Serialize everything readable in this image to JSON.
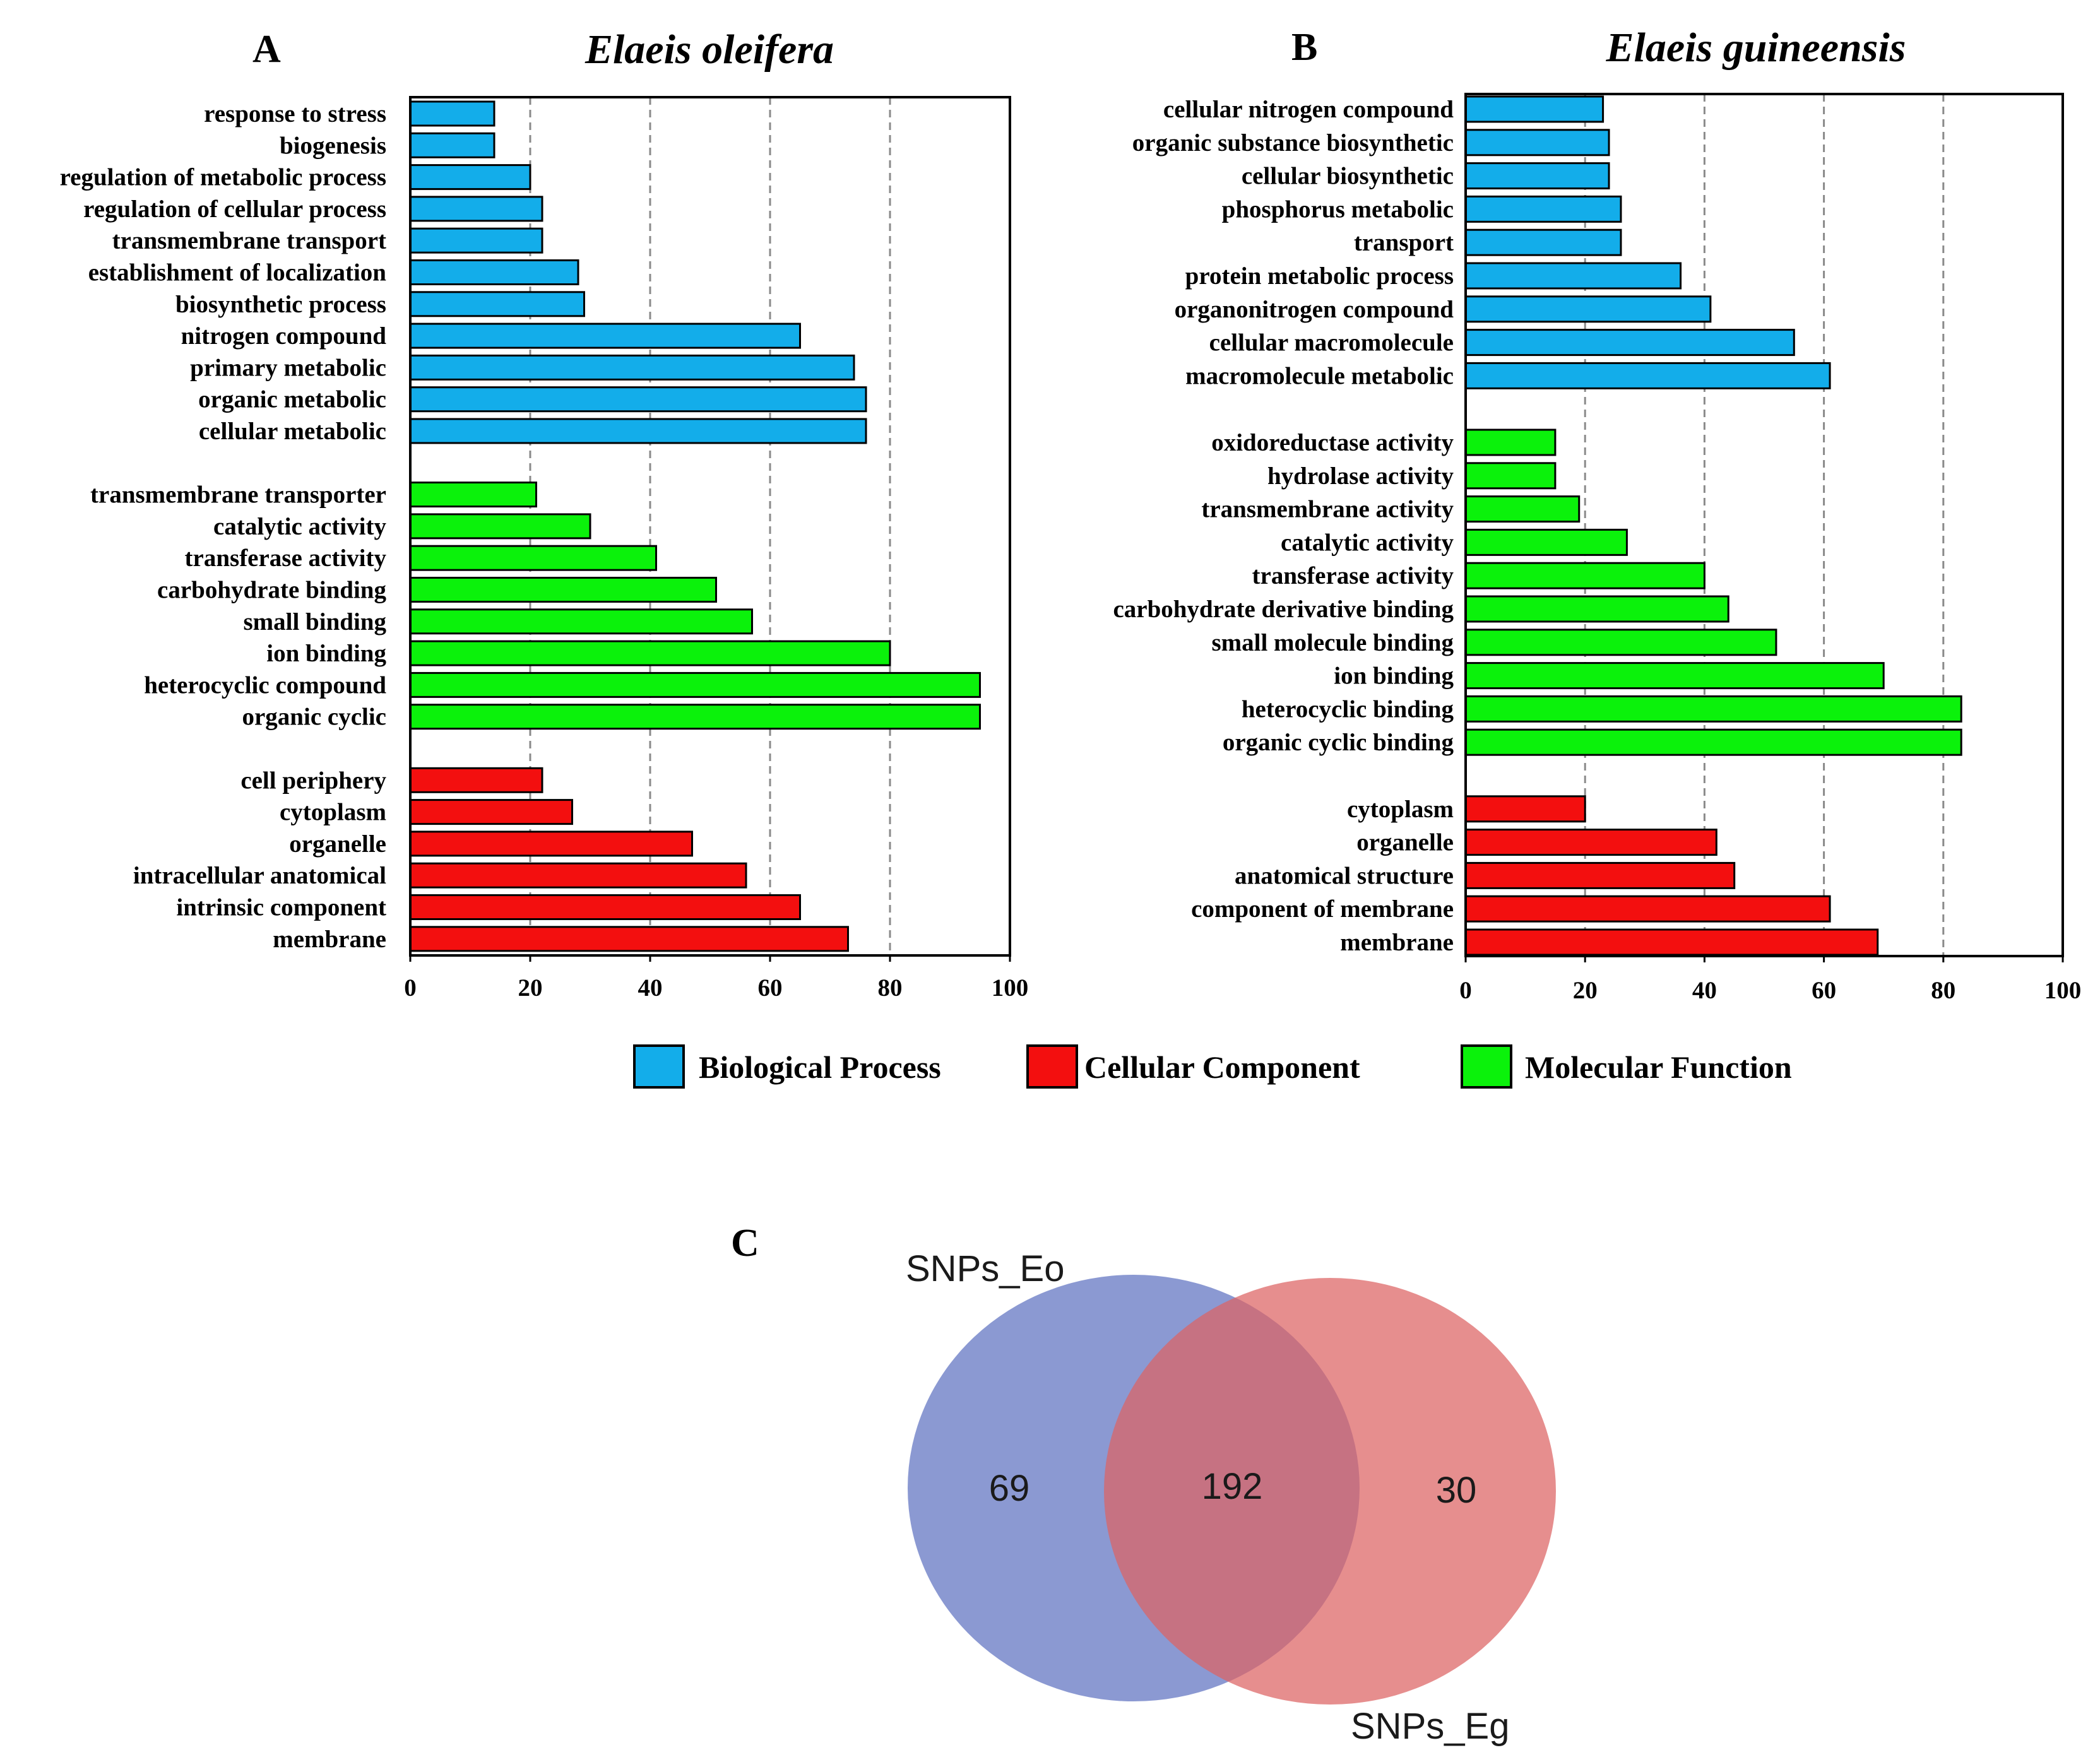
{
  "colors": {
    "biological_process": "#13ADEA",
    "molecular_function": "#0BF20B",
    "cellular_component": "#F30F0F",
    "venn_eo": "#6E80C7",
    "venn_eg": "#DD6363",
    "venn_overlap": "#A95A78"
  },
  "chart_data": [
    {
      "type": "bar",
      "orientation": "horizontal",
      "panel_label": "A",
      "title": "Elaeis oleifera",
      "xlim": [
        0,
        100
      ],
      "xticks": [
        "0",
        "20",
        "40",
        "60",
        "80",
        "100"
      ],
      "grid": "vertical dashed",
      "groups": [
        {
          "category": "biological_process",
          "items": [
            {
              "label": "response to stress",
              "value": 14
            },
            {
              "label": "biogenesis",
              "value": 14
            },
            {
              "label": "regulation of metabolic process",
              "value": 20
            },
            {
              "label": "regulation of cellular process",
              "value": 22
            },
            {
              "label": "transmembrane transport",
              "value": 22
            },
            {
              "label": "establishment of localization",
              "value": 28
            },
            {
              "label": "biosynthetic process",
              "value": 29
            },
            {
              "label": "nitrogen compound",
              "value": 65
            },
            {
              "label": "primary metabolic",
              "value": 74
            },
            {
              "label": "organic metabolic",
              "value": 76
            },
            {
              "label": "cellular metabolic",
              "value": 76
            }
          ]
        },
        {
          "category": "molecular_function",
          "items": [
            {
              "label": "transmembrane transporter",
              "value": 21
            },
            {
              "label": "catalytic activity",
              "value": 30
            },
            {
              "label": "transferase activity",
              "value": 41
            },
            {
              "label": "carbohydrate binding",
              "value": 51
            },
            {
              "label": "small binding",
              "value": 57
            },
            {
              "label": "ion binding",
              "value": 80
            },
            {
              "label": "heterocyclic compound",
              "value": 95
            },
            {
              "label": "organic cyclic",
              "value": 95
            }
          ]
        },
        {
          "category": "cellular_component",
          "items": [
            {
              "label": "cell periphery",
              "value": 22
            },
            {
              "label": "cytoplasm",
              "value": 27
            },
            {
              "label": "organelle",
              "value": 47
            },
            {
              "label": "intracellular anatomical",
              "value": 56
            },
            {
              "label": "intrinsic component",
              "value": 65
            },
            {
              "label": "membrane",
              "value": 73
            }
          ]
        }
      ]
    },
    {
      "type": "bar",
      "orientation": "horizontal",
      "panel_label": "B",
      "title": "Elaeis guineensis",
      "xlim": [
        0,
        100
      ],
      "xticks": [
        "0",
        "20",
        "40",
        "60",
        "80",
        "100"
      ],
      "grid": "vertical dashed",
      "groups": [
        {
          "category": "biological_process",
          "items": [
            {
              "label": "cellular nitrogen compound",
              "value": 23
            },
            {
              "label": "organic substance biosynthetic",
              "value": 24
            },
            {
              "label": "cellular biosynthetic",
              "value": 24
            },
            {
              "label": "phosphorus metabolic",
              "value": 26
            },
            {
              "label": "transport",
              "value": 26
            },
            {
              "label": "protein metabolic process",
              "value": 36
            },
            {
              "label": "organonitrogen compound",
              "value": 41
            },
            {
              "label": "cellular macromolecule",
              "value": 55
            },
            {
              "label": "macromolecule metabolic",
              "value": 61
            }
          ]
        },
        {
          "category": "molecular_function",
          "items": [
            {
              "label": "oxidoreductase activity",
              "value": 15
            },
            {
              "label": "hydrolase activity",
              "value": 15
            },
            {
              "label": "transmembrane activity",
              "value": 19
            },
            {
              "label": "catalytic activity",
              "value": 27
            },
            {
              "label": "transferase activity",
              "value": 40
            },
            {
              "label": "carbohydrate derivative binding",
              "value": 44
            },
            {
              "label": "small molecule binding",
              "value": 52
            },
            {
              "label": "ion binding",
              "value": 70
            },
            {
              "label": "heterocyclic binding",
              "value": 83
            },
            {
              "label": "organic cyclic binding",
              "value": 83
            }
          ]
        },
        {
          "category": "cellular_component",
          "items": [
            {
              "label": "cytoplasm",
              "value": 20
            },
            {
              "label": "organelle",
              "value": 42
            },
            {
              "label": "anatomical structure",
              "value": 45
            },
            {
              "label": "component of membrane",
              "value": 61
            },
            {
              "label": "membrane",
              "value": 69
            }
          ]
        }
      ]
    },
    {
      "type": "venn",
      "panel_label": "C",
      "sets": [
        {
          "name": "SNPs_Eo",
          "only": 69
        },
        {
          "name": "SNPs_Eg",
          "only": 30
        }
      ],
      "intersection": 192
    }
  ],
  "legend": {
    "items": [
      {
        "key": "biological_process",
        "label": "Biological Process"
      },
      {
        "key": "cellular_component",
        "label": "Cellular Component"
      },
      {
        "key": "molecular_function",
        "label": "Molecular Function"
      }
    ]
  }
}
